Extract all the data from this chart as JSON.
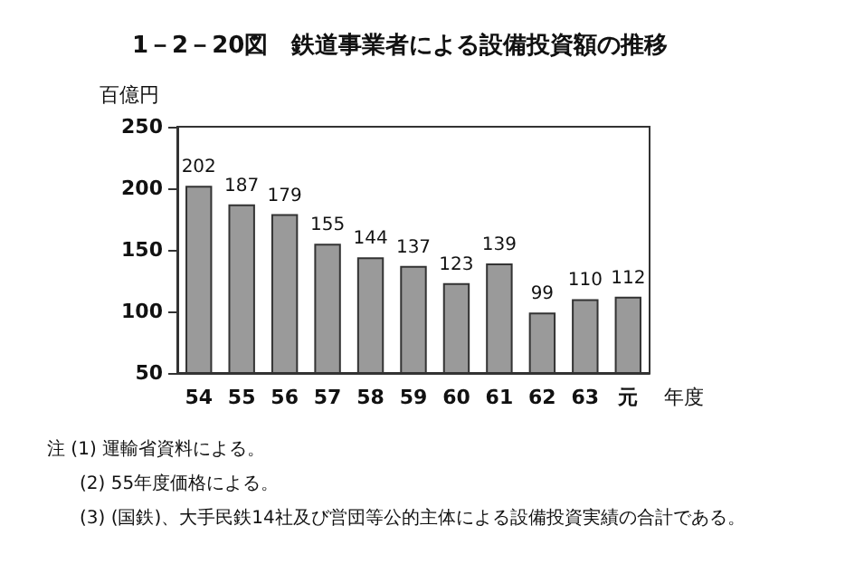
{
  "chart_data": {
    "type": "bar",
    "title": "1－2－20図　鉄道事業者による設備投資額の推移",
    "ylabel": "百億円",
    "xlabel": "年度",
    "categories": [
      "54",
      "55",
      "56",
      "57",
      "58",
      "59",
      "60",
      "61",
      "62",
      "63",
      "元"
    ],
    "values": [
      202,
      187,
      179,
      155,
      144,
      137,
      123,
      139,
      99,
      110,
      112
    ],
    "color": "#9a9a9a",
    "ylim": [
      50,
      250
    ],
    "yticks": [
      50,
      100,
      150,
      200,
      250
    ],
    "grid": false,
    "data_labels": true,
    "annotations": [
      "注 (1) 運輸省資料による。",
      "(2) 55年度価格による。",
      "(3) (国鉄)、大手民鉄14社及び営団等公的主体による設備投資実績の合計である。"
    ]
  }
}
